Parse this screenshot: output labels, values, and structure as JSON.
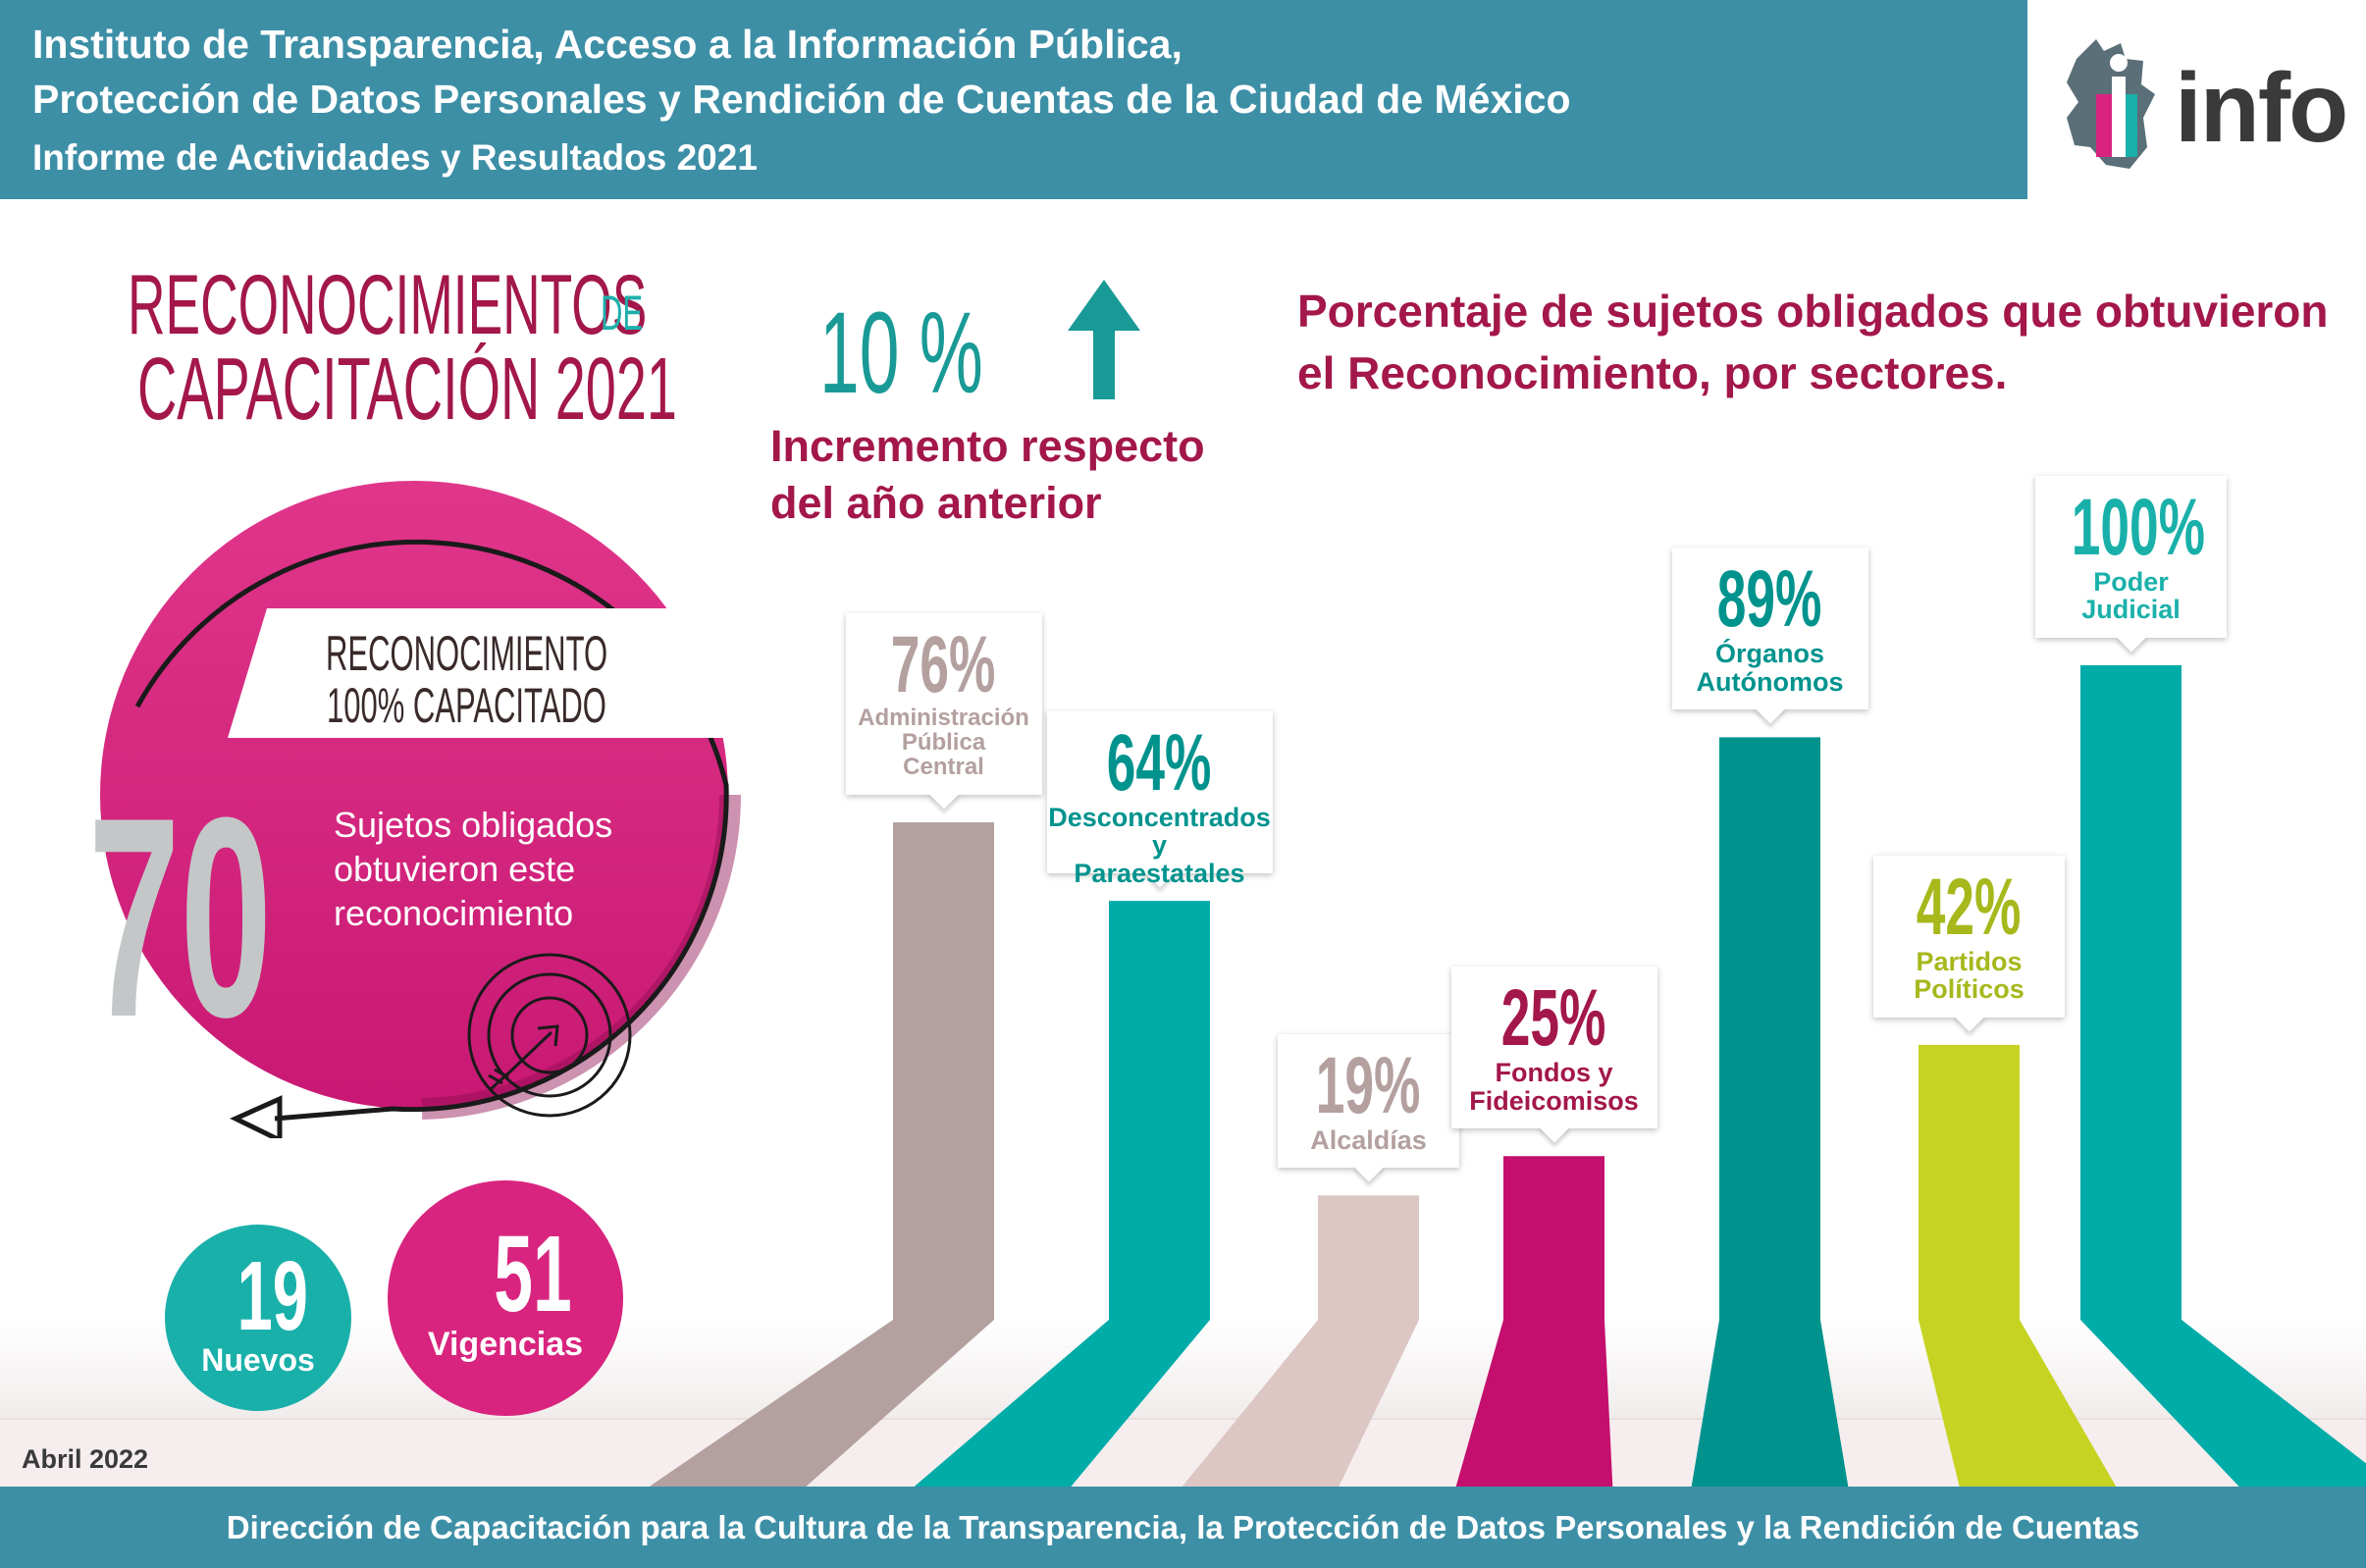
{
  "header": {
    "line1": "Instituto de Transparencia, Acceso a la Información Pública,",
    "line2": "Protección de Datos Personales y Rendición de Cuentas de la Ciudad de México",
    "line3": "Informe de Actividades y Resultados 2021",
    "logo_text": "info"
  },
  "title": {
    "line1": "RECONOCIMIENTOS",
    "de": "DE",
    "line2": "CAPACITACIÓN 2021"
  },
  "banner": {
    "line1": "RECONOCIMIENTO",
    "line2": "100% CAPACITADO"
  },
  "total": {
    "value": "70",
    "text": "Sujetos obligados obtuvieron este reconocimiento"
  },
  "nuevos": {
    "value": "19",
    "label": "Nuevos"
  },
  "vigencias": {
    "value": "51",
    "label": "Vigencias"
  },
  "increment": {
    "value": "10 %",
    "text_line1": "Incremento respecto",
    "text_line2": "del año anterior"
  },
  "chart_title": "Porcentaje de sujetos obligados que obtuvieron el Reconocimiento, por sectores.",
  "date": "Abril 2022",
  "footer": "Dirección de Capacitación para la Cultura de la Transparencia, la Protección de Datos Personales y la Rendición de Cuentas",
  "colors": {
    "header": "#3d8fa6",
    "magenta": "#d8247f",
    "teal": "#1ab0aa",
    "dark_teal": "#00938e",
    "crimson": "#a3174a",
    "lime": "#c6d322",
    "mauve": "#b3a09f",
    "pale": "#dcc7c5",
    "fuchsia": "#c40f6e"
  },
  "chart_data": {
    "type": "bar",
    "categories": [
      "Administración Pública Central",
      "Desconcentrados y Paraestatales",
      "Alcaldías",
      "Fondos y Fideicomisos",
      "Órganos Autónomos",
      "Partidos Políticos",
      "Poder Judicial"
    ],
    "values": [
      76,
      64,
      19,
      25,
      89,
      42,
      100
    ],
    "labels": [
      "76%",
      "64%",
      "19%",
      "25%",
      "89%",
      "42%",
      "100%"
    ],
    "label_lines": [
      [
        "Administración",
        "Pública",
        "Central"
      ],
      [
        "Desconcentrados y",
        "Paraestatales"
      ],
      [
        "Alcaldías"
      ],
      [
        "Fondos y",
        "Fideicomisos"
      ],
      [
        "Órganos",
        "Autónomos"
      ],
      [
        "Partidos",
        "Políticos"
      ],
      [
        "Poder",
        "Judicial"
      ]
    ],
    "colors": [
      "#b3a09f",
      "#00aca8",
      "#dcc7c5",
      "#c40f6e",
      "#00938e",
      "#c6d322",
      "#00aca8"
    ],
    "pct_colors": [
      "#b3a09f",
      "#00938e",
      "#b3a09f",
      "#a3174a",
      "#00938e",
      "#a6b81c",
      "#1ab0aa"
    ],
    "label_colors": [
      "#b3a09f",
      "#00938e",
      "#b3a09f",
      "#a3174a",
      "#00938e",
      "#a6b81c",
      "#1ab0aa"
    ],
    "ylim": [
      0,
      100
    ]
  }
}
